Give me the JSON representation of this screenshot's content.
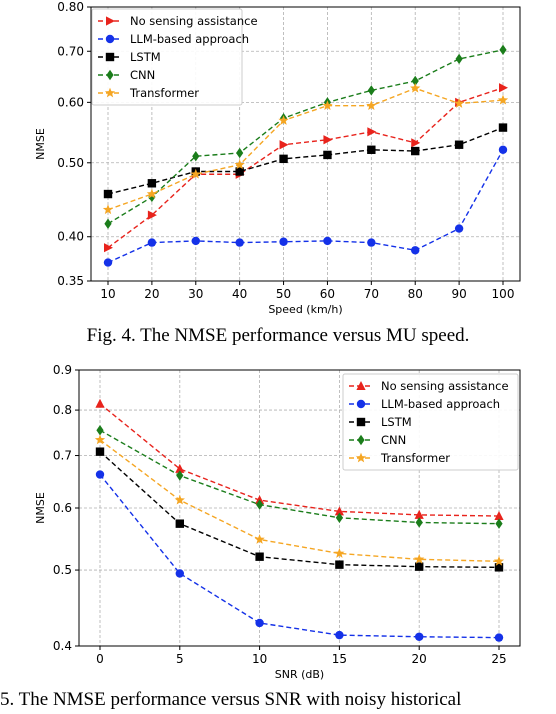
{
  "figure1": {
    "caption": "Fig. 4. The NMSE performance versus MU speed.",
    "chart_data": {
      "type": "line",
      "xlabel": "Speed (km/h)",
      "ylabel": "NMSE",
      "yscale": "log",
      "x": [
        10,
        20,
        30,
        40,
        50,
        60,
        70,
        80,
        90,
        100
      ],
      "xticks": [
        "10",
        "20",
        "30",
        "40",
        "50",
        "60",
        "70",
        "80",
        "90",
        "100"
      ],
      "ylim": [
        0.35,
        0.8
      ],
      "yticks": [
        {
          "value": 0.35,
          "label": "0.35"
        },
        {
          "value": 0.4,
          "label": "0.40"
        },
        {
          "value": 0.5,
          "label": "0.50"
        },
        {
          "value": 0.6,
          "label": "0.60"
        },
        {
          "value": 0.7,
          "label": "0.70"
        },
        {
          "value": 0.8,
          "label": "0.80"
        }
      ],
      "grid": true,
      "legend_position": "top-left",
      "series": [
        {
          "name": "No sensing assistance",
          "color": "#e8231c",
          "marker": "triangle-right",
          "values": [
            0.387,
            0.427,
            0.483,
            0.483,
            0.528,
            0.536,
            0.549,
            0.531,
            0.6,
            0.627
          ]
        },
        {
          "name": "LLM-based approach",
          "color": "#1431e8",
          "marker": "circle",
          "values": [
            0.37,
            0.393,
            0.395,
            0.393,
            0.394,
            0.395,
            0.393,
            0.384,
            0.41,
            0.52
          ]
        },
        {
          "name": "LSTM",
          "color": "#000000",
          "marker": "square",
          "values": [
            0.455,
            0.47,
            0.487,
            0.487,
            0.506,
            0.512,
            0.52,
            0.518,
            0.528,
            0.556
          ]
        },
        {
          "name": "CNN",
          "color": "#1b7d1b",
          "marker": "diamond",
          "values": [
            0.416,
            0.451,
            0.51,
            0.515,
            0.572,
            0.6,
            0.622,
            0.64,
            0.684,
            0.703
          ]
        },
        {
          "name": "Transformer",
          "color": "#f5a623",
          "marker": "star",
          "values": [
            0.434,
            0.455,
            0.483,
            0.497,
            0.568,
            0.594,
            0.594,
            0.626,
            0.598,
            0.604
          ]
        }
      ]
    }
  },
  "figure2": {
    "caption": "5. The NMSE performance versus SNR with noisy historical",
    "chart_data": {
      "type": "line",
      "xlabel": "SNR (dB)",
      "ylabel": "NMSE",
      "yscale": "log",
      "x": [
        0,
        5,
        10,
        15,
        20,
        25
      ],
      "xticks": [
        "0",
        "5",
        "10",
        "15",
        "20",
        "25"
      ],
      "ylim": [
        0.4,
        0.9
      ],
      "yticks": [
        {
          "value": 0.4,
          "label": "0.4"
        },
        {
          "value": 0.5,
          "label": "0.5"
        },
        {
          "value": 0.6,
          "label": "0.6"
        },
        {
          "value": 0.7,
          "label": "0.7"
        },
        {
          "value": 0.8,
          "label": "0.8"
        },
        {
          "value": 0.9,
          "label": "0.9"
        }
      ],
      "grid": true,
      "legend_position": "top-right",
      "series": [
        {
          "name": "No sensing assistance",
          "color": "#e8231c",
          "marker": "triangle-up",
          "values": [
            0.815,
            0.673,
            0.614,
            0.594,
            0.588,
            0.586
          ]
        },
        {
          "name": "LLM-based approach",
          "color": "#1431e8",
          "marker": "circle",
          "values": [
            0.662,
            0.495,
            0.428,
            0.413,
            0.411,
            0.41
          ]
        },
        {
          "name": "LSTM",
          "color": "#000000",
          "marker": "square",
          "values": [
            0.708,
            0.573,
            0.52,
            0.508,
            0.505,
            0.504
          ]
        },
        {
          "name": "CNN",
          "color": "#1b7d1b",
          "marker": "diamond",
          "values": [
            0.754,
            0.66,
            0.606,
            0.583,
            0.575,
            0.573
          ]
        },
        {
          "name": "Transformer",
          "color": "#f5a623",
          "marker": "star",
          "values": [
            0.733,
            0.614,
            0.547,
            0.525,
            0.516,
            0.513
          ]
        }
      ]
    }
  }
}
